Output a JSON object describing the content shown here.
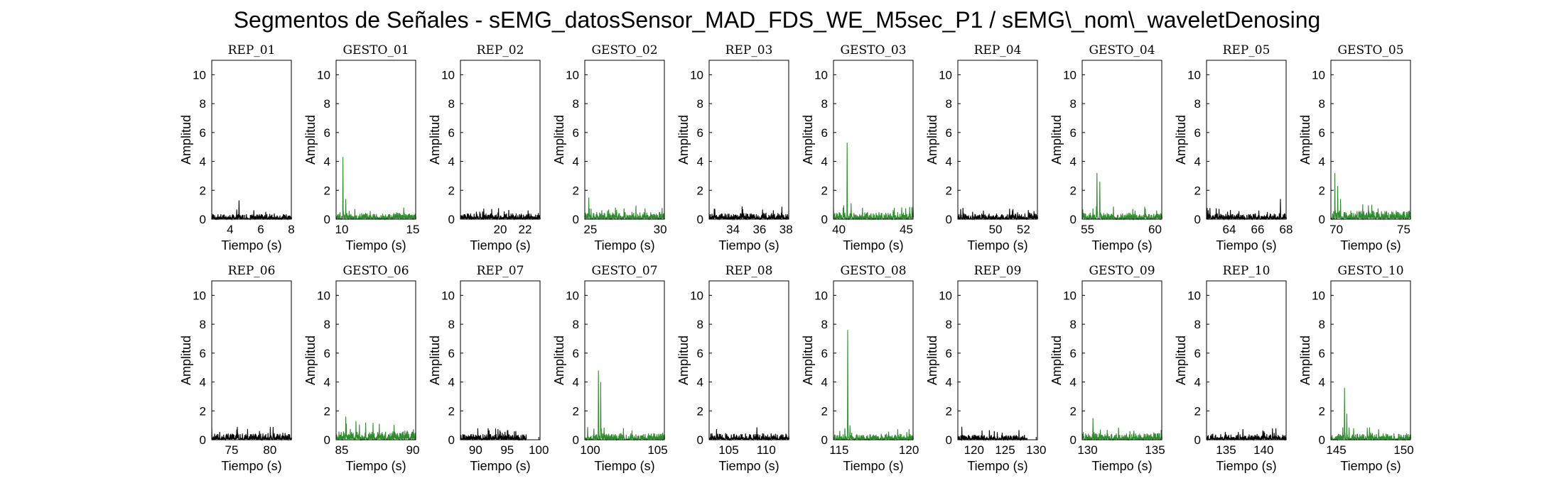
{
  "figure": {
    "title": "Segmentos de Señales - sEMG_datosSensor_MAD_FDS_WE_M5sec_P1 / sEMG\\_nom\\_waveletDenosing",
    "colors": {
      "rep": "#000000",
      "gesto": "#2e8b2e"
    }
  },
  "chart_data": [
    {
      "type": "line",
      "title": "REP_01",
      "xlabel": "Tiempo (s)",
      "ylabel": "Amplitud",
      "xlim": [
        2.8,
        8.0
      ],
      "ylim": [
        0,
        11
      ],
      "xticks": [
        4,
        6,
        8
      ],
      "yticks": [
        0,
        2,
        4,
        6,
        8,
        10
      ],
      "series_kind": "rep",
      "baseline": 0.35,
      "peaks": [
        [
          4.6,
          1.3
        ]
      ]
    },
    {
      "type": "line",
      "title": "GESTO_01",
      "xlabel": "Tiempo (s)",
      "ylabel": "Amplitud",
      "xlim": [
        9.6,
        15.2
      ],
      "ylim": [
        0,
        11
      ],
      "xticks": [
        10,
        15
      ],
      "yticks": [
        0,
        2,
        4,
        6,
        8,
        10
      ],
      "series_kind": "gesto",
      "baseline": 0.45,
      "peaks": [
        [
          10.1,
          4.3
        ],
        [
          10.3,
          1.4
        ]
      ]
    },
    {
      "type": "line",
      "title": "REP_02",
      "xlabel": "Tiempo (s)",
      "ylabel": "Amplitud",
      "xlim": [
        16.8,
        23.2
      ],
      "ylim": [
        0,
        11
      ],
      "xticks": [
        20,
        22
      ],
      "yticks": [
        0,
        2,
        4,
        6,
        8,
        10
      ],
      "series_kind": "rep",
      "baseline": 0.4,
      "peaks": []
    },
    {
      "type": "line",
      "title": "GESTO_02",
      "xlabel": "Tiempo (s)",
      "ylabel": "Amplitud",
      "xlim": [
        24.6,
        30.3
      ],
      "ylim": [
        0,
        11
      ],
      "xticks": [
        25,
        30
      ],
      "yticks": [
        0,
        2,
        4,
        6,
        8,
        10
      ],
      "series_kind": "gesto",
      "baseline": 0.5,
      "peaks": [
        [
          24.9,
          1.5
        ]
      ]
    },
    {
      "type": "line",
      "title": "REP_03",
      "xlabel": "Tiempo (s)",
      "ylabel": "Amplitud",
      "xlim": [
        32.2,
        38.2
      ],
      "ylim": [
        0,
        11
      ],
      "xticks": [
        34,
        36,
        38
      ],
      "yticks": [
        0,
        2,
        4,
        6,
        8,
        10
      ],
      "series_kind": "rep",
      "baseline": 0.45,
      "peaks": []
    },
    {
      "type": "line",
      "title": "GESTO_03",
      "xlabel": "Tiempo (s)",
      "ylabel": "Amplitud",
      "xlim": [
        39.6,
        45.5
      ],
      "ylim": [
        0,
        11
      ],
      "xticks": [
        40,
        45
      ],
      "yticks": [
        0,
        2,
        4,
        6,
        8,
        10
      ],
      "series_kind": "gesto",
      "baseline": 0.5,
      "peaks": [
        [
          40.6,
          5.3
        ],
        [
          40.9,
          1.1
        ]
      ]
    },
    {
      "type": "line",
      "title": "REP_04",
      "xlabel": "Tiempo (s)",
      "ylabel": "Amplitud",
      "xlim": [
        47.3,
        53.0
      ],
      "ylim": [
        0,
        11
      ],
      "xticks": [
        50,
        52
      ],
      "yticks": [
        0,
        2,
        4,
        6,
        8,
        10
      ],
      "series_kind": "rep",
      "baseline": 0.4,
      "peaks": []
    },
    {
      "type": "line",
      "title": "GESTO_04",
      "xlabel": "Tiempo (s)",
      "ylabel": "Amplitud",
      "xlim": [
        54.6,
        60.5
      ],
      "ylim": [
        0,
        11
      ],
      "xticks": [
        55,
        60
      ],
      "yticks": [
        0,
        2,
        4,
        6,
        8,
        10
      ],
      "series_kind": "gesto",
      "baseline": 0.45,
      "peaks": [
        [
          55.7,
          3.2
        ],
        [
          55.9,
          2.6
        ]
      ]
    },
    {
      "type": "line",
      "title": "REP_05",
      "xlabel": "Tiempo (s)",
      "ylabel": "Amplitud",
      "xlim": [
        62.4,
        68.0
      ],
      "ylim": [
        0,
        11
      ],
      "xticks": [
        64,
        66,
        68
      ],
      "yticks": [
        0,
        2,
        4,
        6,
        8,
        10
      ],
      "series_kind": "rep",
      "baseline": 0.4,
      "peaks": [
        [
          67.6,
          1.4
        ]
      ]
    },
    {
      "type": "line",
      "title": "GESTO_05",
      "xlabel": "Tiempo (s)",
      "ylabel": "Amplitud",
      "xlim": [
        69.6,
        75.5
      ],
      "ylim": [
        0,
        11
      ],
      "xticks": [
        70,
        75
      ],
      "yticks": [
        0,
        2,
        4,
        6,
        8,
        10
      ],
      "series_kind": "gesto",
      "baseline": 0.6,
      "peaks": [
        [
          69.9,
          3.2
        ],
        [
          70.1,
          2.3
        ],
        [
          70.3,
          1.4
        ]
      ]
    },
    {
      "type": "line",
      "title": "REP_06",
      "xlabel": "Tiempo (s)",
      "ylabel": "Amplitud",
      "xlim": [
        72.4,
        82.8
      ],
      "ylim": [
        0,
        11
      ],
      "xticks": [
        75,
        80
      ],
      "yticks": [
        0,
        2,
        4,
        6,
        8,
        10
      ],
      "series_kind": "rep",
      "baseline": 0.45,
      "peaks": []
    },
    {
      "type": "line",
      "title": "GESTO_06",
      "xlabel": "Tiempo (s)",
      "ylabel": "Amplitud",
      "xlim": [
        84.6,
        90.2
      ],
      "ylim": [
        0,
        11
      ],
      "xticks": [
        85,
        90
      ],
      "yticks": [
        0,
        2,
        4,
        6,
        8,
        10
      ],
      "series_kind": "gesto",
      "baseline": 0.6,
      "peaks": [
        [
          85.3,
          1.6
        ],
        [
          86.0,
          1.3
        ],
        [
          86.7,
          1.2
        ]
      ]
    },
    {
      "type": "line",
      "title": "REP_07",
      "xlabel": "Tiempo (s)",
      "ylabel": "Amplitud",
      "xlim": [
        87.6,
        100.2
      ],
      "ylim": [
        0,
        11
      ],
      "xticks": [
        90,
        95,
        100
      ],
      "yticks": [
        0,
        2,
        4,
        6,
        8,
        10
      ],
      "series_kind": "rep",
      "baseline": 0.4,
      "x_end": 98.0,
      "peaks": []
    },
    {
      "type": "line",
      "title": "GESTO_07",
      "xlabel": "Tiempo (s)",
      "ylabel": "Amplitud",
      "xlim": [
        99.6,
        105.5
      ],
      "ylim": [
        0,
        11
      ],
      "xticks": [
        100,
        105
      ],
      "yticks": [
        0,
        2,
        4,
        6,
        8,
        10
      ],
      "series_kind": "gesto",
      "baseline": 0.45,
      "peaks": [
        [
          100.6,
          4.8
        ],
        [
          100.8,
          4.0
        ]
      ]
    },
    {
      "type": "line",
      "title": "REP_08",
      "xlabel": "Tiempo (s)",
      "ylabel": "Amplitud",
      "xlim": [
        102.4,
        113.0
      ],
      "ylim": [
        0,
        11
      ],
      "xticks": [
        105,
        110
      ],
      "yticks": [
        0,
        2,
        4,
        6,
        8,
        10
      ],
      "series_kind": "rep",
      "baseline": 0.45,
      "peaks": []
    },
    {
      "type": "line",
      "title": "GESTO_08",
      "xlabel": "Tiempo (s)",
      "ylabel": "Amplitud",
      "xlim": [
        114.6,
        120.3
      ],
      "ylim": [
        0,
        11
      ],
      "xticks": [
        115,
        120
      ],
      "yticks": [
        0,
        2,
        4,
        6,
        8,
        10
      ],
      "series_kind": "gesto",
      "baseline": 0.4,
      "peaks": [
        [
          115.6,
          7.6
        ],
        [
          115.8,
          1.0
        ]
      ]
    },
    {
      "type": "line",
      "title": "REP_09",
      "xlabel": "Tiempo (s)",
      "ylabel": "Amplitud",
      "xlim": [
        117.4,
        130.2
      ],
      "ylim": [
        0,
        11
      ],
      "xticks": [
        120,
        125,
        130
      ],
      "yticks": [
        0,
        2,
        4,
        6,
        8,
        10
      ],
      "series_kind": "rep",
      "baseline": 0.35,
      "x_end": 128.5,
      "peaks": [
        [
          118.0,
          0.9
        ]
      ]
    },
    {
      "type": "line",
      "title": "GESTO_09",
      "xlabel": "Tiempo (s)",
      "ylabel": "Amplitud",
      "xlim": [
        129.6,
        135.5
      ],
      "ylim": [
        0,
        11
      ],
      "xticks": [
        130,
        135
      ],
      "yticks": [
        0,
        2,
        4,
        6,
        8,
        10
      ],
      "series_kind": "gesto",
      "baseline": 0.45,
      "peaks": [
        [
          130.4,
          1.5
        ]
      ]
    },
    {
      "type": "line",
      "title": "REP_10",
      "xlabel": "Tiempo (s)",
      "ylabel": "Amplitud",
      "xlim": [
        132.4,
        143.0
      ],
      "ylim": [
        0,
        11
      ],
      "xticks": [
        135,
        140
      ],
      "yticks": [
        0,
        2,
        4,
        6,
        8,
        10
      ],
      "series_kind": "rep",
      "baseline": 0.4,
      "peaks": []
    },
    {
      "type": "line",
      "title": "GESTO_10",
      "xlabel": "Tiempo (s)",
      "ylabel": "Amplitud",
      "xlim": [
        144.6,
        150.5
      ],
      "ylim": [
        0,
        11
      ],
      "xticks": [
        145,
        150
      ],
      "yticks": [
        0,
        2,
        4,
        6,
        8,
        10
      ],
      "series_kind": "gesto",
      "baseline": 0.45,
      "peaks": [
        [
          145.6,
          3.6
        ],
        [
          145.8,
          1.8
        ]
      ]
    }
  ]
}
